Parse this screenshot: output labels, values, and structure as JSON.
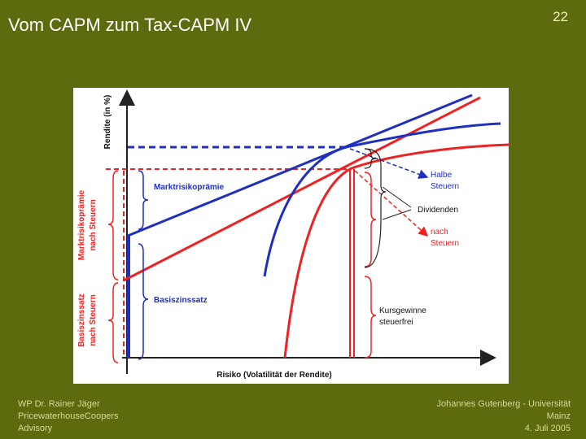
{
  "header": {
    "title": "Vom CAPM zum Tax-CAPM IV",
    "page_number": "22"
  },
  "diagram": {
    "y_axis_label": "Rendite (in %)",
    "x_axis_label": "Risiko (Volatilität der Rendite)",
    "left_labels": [
      [
        "Marktrisikoprämie",
        "nach Steuern"
      ],
      [
        "Basiszinssatz",
        "nach Steuern"
      ]
    ],
    "inner_labels": [
      "Marktrisikoprämie",
      "Basiszinssatz"
    ],
    "right_labels": {
      "half_tax": [
        "Halbe",
        "Steuern"
      ],
      "dividends": "Dividenden",
      "after_tax": [
        "nach",
        "Steuern"
      ],
      "capital_gains": [
        "Kursgewinne",
        "steuerfrei"
      ]
    }
  },
  "footer": {
    "left": [
      "WP Dr. Rainer Jäger",
      "PricewaterhouseCoopers",
      "Advisory"
    ],
    "right": [
      "Johannes Gutenberg - Universität",
      "Mainz",
      "4. Juli 2005"
    ]
  }
}
